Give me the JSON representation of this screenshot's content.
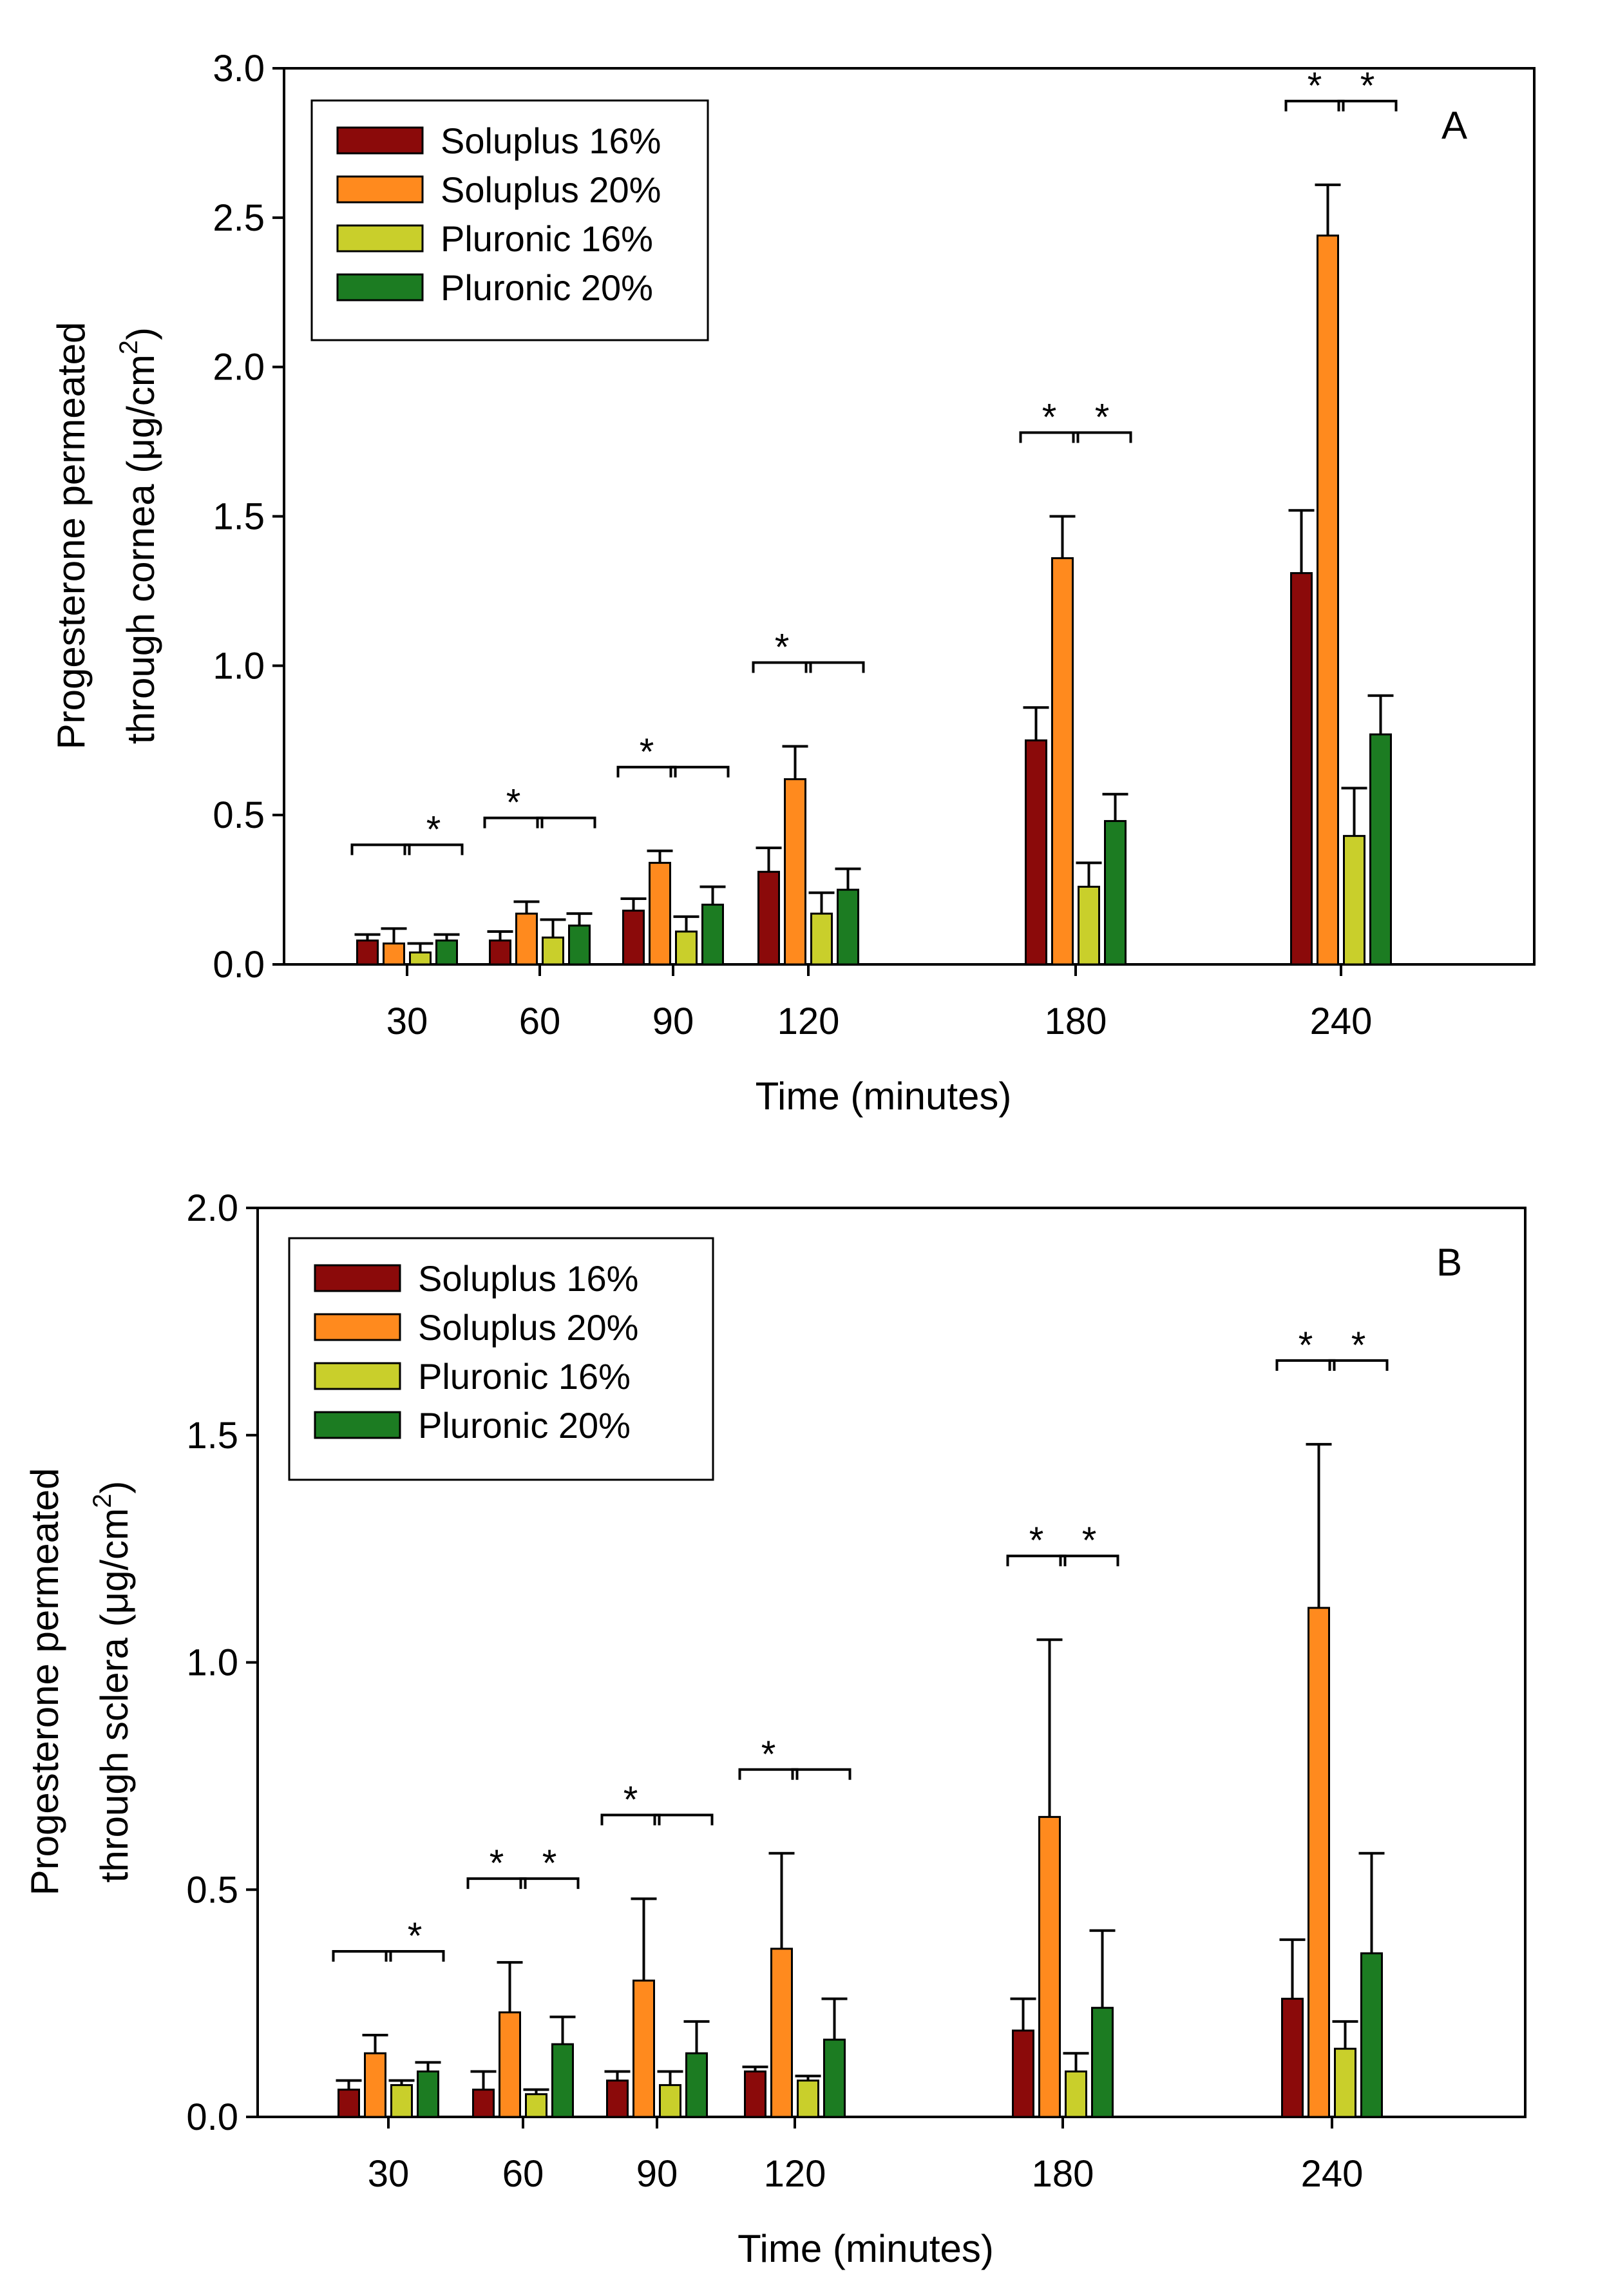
{
  "colors": {
    "Soluplus 16%": "#8b0a0a",
    "Soluplus 20%": "#ff8a1e",
    "Pluronic 16%": "#c9cf2b",
    "Pluronic 20%": "#1c7c22"
  },
  "chart_data": [
    {
      "type": "bar",
      "panel_label": "A",
      "xlabel": "Time (minutes)",
      "ylabel_line1": "Progesterone permeated",
      "ylabel_line2_prefix": "through cornea (",
      "ylabel_unit_mu": "μ",
      "ylabel_unit_rest": "g/cm",
      "ylabel_sup": "2",
      "ylabel_close": ")",
      "ylim": [
        0,
        3.0
      ],
      "yticks": [
        "0.0",
        "0.5",
        "1.0",
        "1.5",
        "2.0",
        "2.5",
        "3.0"
      ],
      "categories": [
        "30",
        "60",
        "90",
        "120",
        "180",
        "240"
      ],
      "series": [
        {
          "name": "Soluplus 16%",
          "values": [
            0.08,
            0.08,
            0.18,
            0.31,
            0.75,
            1.31
          ],
          "errors": [
            0.02,
            0.03,
            0.04,
            0.08,
            0.11,
            0.21
          ]
        },
        {
          "name": "Soluplus 20%",
          "values": [
            0.07,
            0.17,
            0.34,
            0.62,
            1.36,
            2.44
          ],
          "errors": [
            0.05,
            0.04,
            0.04,
            0.11,
            0.14,
            0.17
          ]
        },
        {
          "name": "Pluronic 16%",
          "values": [
            0.04,
            0.09,
            0.11,
            0.17,
            0.26,
            0.43
          ],
          "errors": [
            0.03,
            0.06,
            0.05,
            0.07,
            0.08,
            0.16
          ]
        },
        {
          "name": "Pluronic 20%",
          "values": [
            0.08,
            0.13,
            0.2,
            0.25,
            0.48,
            0.77
          ],
          "errors": [
            0.02,
            0.04,
            0.06,
            0.07,
            0.09,
            0.13
          ]
        }
      ],
      "significance": [
        {
          "category": "30",
          "left": "",
          "right": "*"
        },
        {
          "category": "60",
          "left": "*",
          "right": ""
        },
        {
          "category": "90",
          "left": "*",
          "right": ""
        },
        {
          "category": "120",
          "left": "*",
          "right": ""
        },
        {
          "category": "180",
          "left": "*",
          "right": "*"
        },
        {
          "category": "240",
          "left": "*",
          "right": "*"
        }
      ]
    },
    {
      "type": "bar",
      "panel_label": "B",
      "xlabel": "Time (minutes)",
      "ylabel_line1": "Progesterone permeated",
      "ylabel_line2_prefix": "through sclera (",
      "ylabel_unit_mu": "μ",
      "ylabel_unit_rest": "g/cm",
      "ylabel_sup": "2",
      "ylabel_close": ")",
      "ylim": [
        0,
        2.0
      ],
      "yticks": [
        "0.0",
        "0.5",
        "1.0",
        "1.5",
        "2.0"
      ],
      "categories": [
        "30",
        "60",
        "90",
        "120",
        "180",
        "240"
      ],
      "series": [
        {
          "name": "Soluplus 16%",
          "values": [
            0.06,
            0.06,
            0.08,
            0.1,
            0.19,
            0.26
          ],
          "errors": [
            0.02,
            0.04,
            0.02,
            0.01,
            0.07,
            0.13
          ]
        },
        {
          "name": "Soluplus 20%",
          "values": [
            0.14,
            0.23,
            0.3,
            0.37,
            0.66,
            1.12
          ],
          "errors": [
            0.04,
            0.11,
            0.18,
            0.21,
            0.39,
            0.36
          ]
        },
        {
          "name": "Pluronic 16%",
          "values": [
            0.07,
            0.05,
            0.07,
            0.08,
            0.1,
            0.15
          ],
          "errors": [
            0.01,
            0.01,
            0.03,
            0.01,
            0.04,
            0.06
          ]
        },
        {
          "name": "Pluronic 20%",
          "values": [
            0.1,
            0.16,
            0.14,
            0.17,
            0.24,
            0.36
          ],
          "errors": [
            0.02,
            0.06,
            0.07,
            0.09,
            0.17,
            0.22
          ]
        }
      ],
      "significance": [
        {
          "category": "30",
          "left": "",
          "right": "*"
        },
        {
          "category": "60",
          "left": "*",
          "right": "*"
        },
        {
          "category": "90",
          "left": "*",
          "right": ""
        },
        {
          "category": "120",
          "left": "*",
          "right": ""
        },
        {
          "category": "180",
          "left": "*",
          "right": "*"
        },
        {
          "category": "240",
          "left": "*",
          "right": "*"
        }
      ]
    }
  ]
}
